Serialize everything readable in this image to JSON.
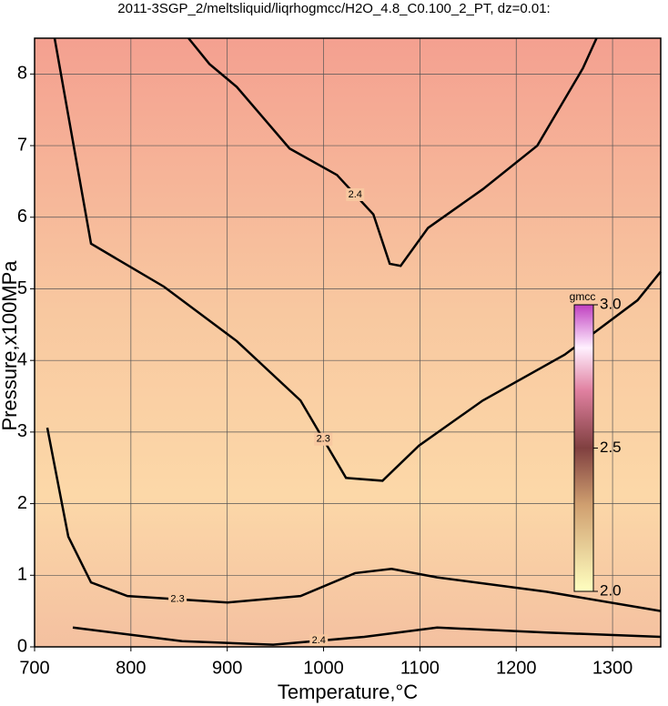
{
  "chart_data": {
    "type": "contour",
    "title": "2011-3SGP_2/meltsliquid/liqrhogmcc/H2O_4.8_C0.100_2_PT, dz=0.01:",
    "x_label": "Temperature,°C",
    "y_label": "Pressure,x100MPa",
    "xlim": [
      700,
      1350
    ],
    "xticks": [
      700,
      800,
      900,
      1000,
      1100,
      1200,
      1300
    ],
    "ylim": [
      0,
      8.5
    ],
    "yticks": [
      0,
      1,
      2,
      3,
      4,
      5,
      6,
      7,
      8
    ],
    "grid": true,
    "contours": [
      {
        "label": "2.4",
        "x": [
          859.8,
          881.5,
          909.9,
          964.7,
          1013.9,
          1051.7,
          1068.7,
          1080,
          1108.4,
          1165.2,
          1221.9,
          1269.2,
          1283.4
        ],
        "y": [
          8.5,
          8.14,
          7.82,
          6.96,
          6.59,
          6.04,
          5.35,
          5.32,
          5.85,
          6.39,
          7.0,
          8.08,
          8.5
        ]
      },
      {
        "label": "2.3",
        "x": [
          720.8,
          758.6,
          834.3,
          909.9,
          976.1,
          1023.3,
          1061.2,
          1099,
          1165.2,
          1250.3,
          1325.9,
          1350
        ],
        "y": [
          8.5,
          5.63,
          5.03,
          4.27,
          3.44,
          2.36,
          2.32,
          2.81,
          3.44,
          4.08,
          4.84,
          5.24
        ]
      },
      {
        "label": "2.3",
        "x": [
          713.2,
          735,
          758.6,
          796.4,
          900.4,
          976.1,
          1032.8,
          1070.6,
          1117.9,
          1231.3,
          1350
        ],
        "y": [
          3.06,
          1.54,
          0.9,
          0.71,
          0.62,
          0.71,
          1.03,
          1.09,
          0.97,
          0.77,
          0.5
        ]
      },
      {
        "label": "2.4",
        "x": [
          739.7,
          853.2,
          947.7,
          1042.3,
          1117.9,
          1231.3,
          1350
        ],
        "y": [
          0.27,
          0.08,
          0.03,
          0.14,
          0.27,
          0.2,
          0.14
        ]
      }
    ],
    "colorbar": {
      "label": "gmcc",
      "lim": [
        2.0,
        3.0
      ],
      "ticks": [
        {
          "value": 2.0,
          "label": "2.0"
        },
        {
          "value": 2.5,
          "label": "2.5"
        },
        {
          "value": 3.0,
          "label": "3.0"
        }
      ]
    }
  }
}
